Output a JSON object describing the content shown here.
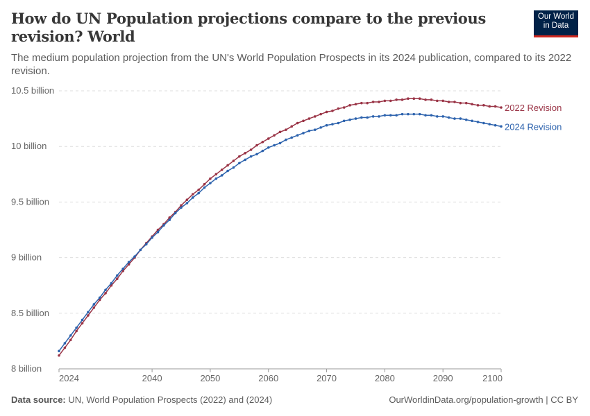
{
  "header": {
    "title": "How do UN Population projections compare to the previous revision? World",
    "subtitle": "The medium population projection from the UN's World Population Prospects in its 2024 publication, compared to its 2022 revision.",
    "logo_text": "Our World in Data"
  },
  "footer": {
    "source_label": "Data source:",
    "source_text": "UN, World Population Prospects (2022) and (2024)",
    "link_text": "OurWorldinData.org/population-growth | CC BY"
  },
  "chart_data": {
    "type": "line",
    "title": "How do UN Population projections compare to the previous revision? World",
    "xlim": [
      2024,
      2100
    ],
    "ylim": [
      8,
      10.5
    ],
    "y_unit": "billion",
    "x_ticks": [
      "2024",
      "2040",
      "2050",
      "2060",
      "2070",
      "2080",
      "2090",
      "2100"
    ],
    "x_tick_values": [
      2024,
      2040,
      2050,
      2060,
      2070,
      2080,
      2090,
      2100
    ],
    "y_ticks": [
      "8 billion",
      "8.5 billion",
      "9 billion",
      "9.5 billion",
      "10 billion",
      "10.5 billion"
    ],
    "y_tick_values": [
      8,
      8.5,
      9,
      9.5,
      10,
      10.5
    ],
    "grid": "horizontal dashed",
    "legend": "line-end labels (right)",
    "x_start": 2024,
    "series": [
      {
        "name": "2022 Revision",
        "color": "#9a3446",
        "values": [
          8.12,
          8.19,
          8.26,
          8.34,
          8.41,
          8.48,
          8.55,
          8.62,
          8.68,
          8.75,
          8.81,
          8.88,
          8.94,
          9.0,
          9.07,
          9.13,
          9.19,
          9.25,
          9.3,
          9.36,
          9.41,
          9.47,
          9.52,
          9.57,
          9.61,
          9.66,
          9.71,
          9.75,
          9.79,
          9.83,
          9.87,
          9.91,
          9.94,
          9.97,
          10.01,
          10.04,
          10.07,
          10.1,
          10.13,
          10.15,
          10.18,
          10.21,
          10.23,
          10.25,
          10.27,
          10.29,
          10.31,
          10.32,
          10.34,
          10.35,
          10.37,
          10.38,
          10.39,
          10.39,
          10.4,
          10.4,
          10.41,
          10.41,
          10.42,
          10.42,
          10.43,
          10.43,
          10.43,
          10.42,
          10.42,
          10.41,
          10.41,
          10.4,
          10.4,
          10.39,
          10.39,
          10.38,
          10.37,
          10.37,
          10.36,
          10.36,
          10.35
        ]
      },
      {
        "name": "2024 Revision",
        "color": "#2c62ad",
        "values": [
          8.16,
          8.23,
          8.3,
          8.37,
          8.44,
          8.51,
          8.58,
          8.64,
          8.71,
          8.77,
          8.84,
          8.9,
          8.96,
          9.01,
          9.07,
          9.12,
          9.18,
          9.23,
          9.29,
          9.34,
          9.4,
          9.45,
          9.49,
          9.54,
          9.58,
          9.63,
          9.67,
          9.71,
          9.74,
          9.78,
          9.81,
          9.85,
          9.88,
          9.91,
          9.93,
          9.96,
          9.99,
          10.01,
          10.03,
          10.06,
          10.08,
          10.1,
          10.12,
          10.14,
          10.15,
          10.17,
          10.19,
          10.2,
          10.21,
          10.23,
          10.24,
          10.25,
          10.26,
          10.26,
          10.27,
          10.27,
          10.28,
          10.28,
          10.28,
          10.29,
          10.29,
          10.29,
          10.29,
          10.28,
          10.28,
          10.27,
          10.27,
          10.26,
          10.25,
          10.25,
          10.24,
          10.23,
          10.22,
          10.21,
          10.2,
          10.19,
          10.18
        ]
      }
    ]
  }
}
